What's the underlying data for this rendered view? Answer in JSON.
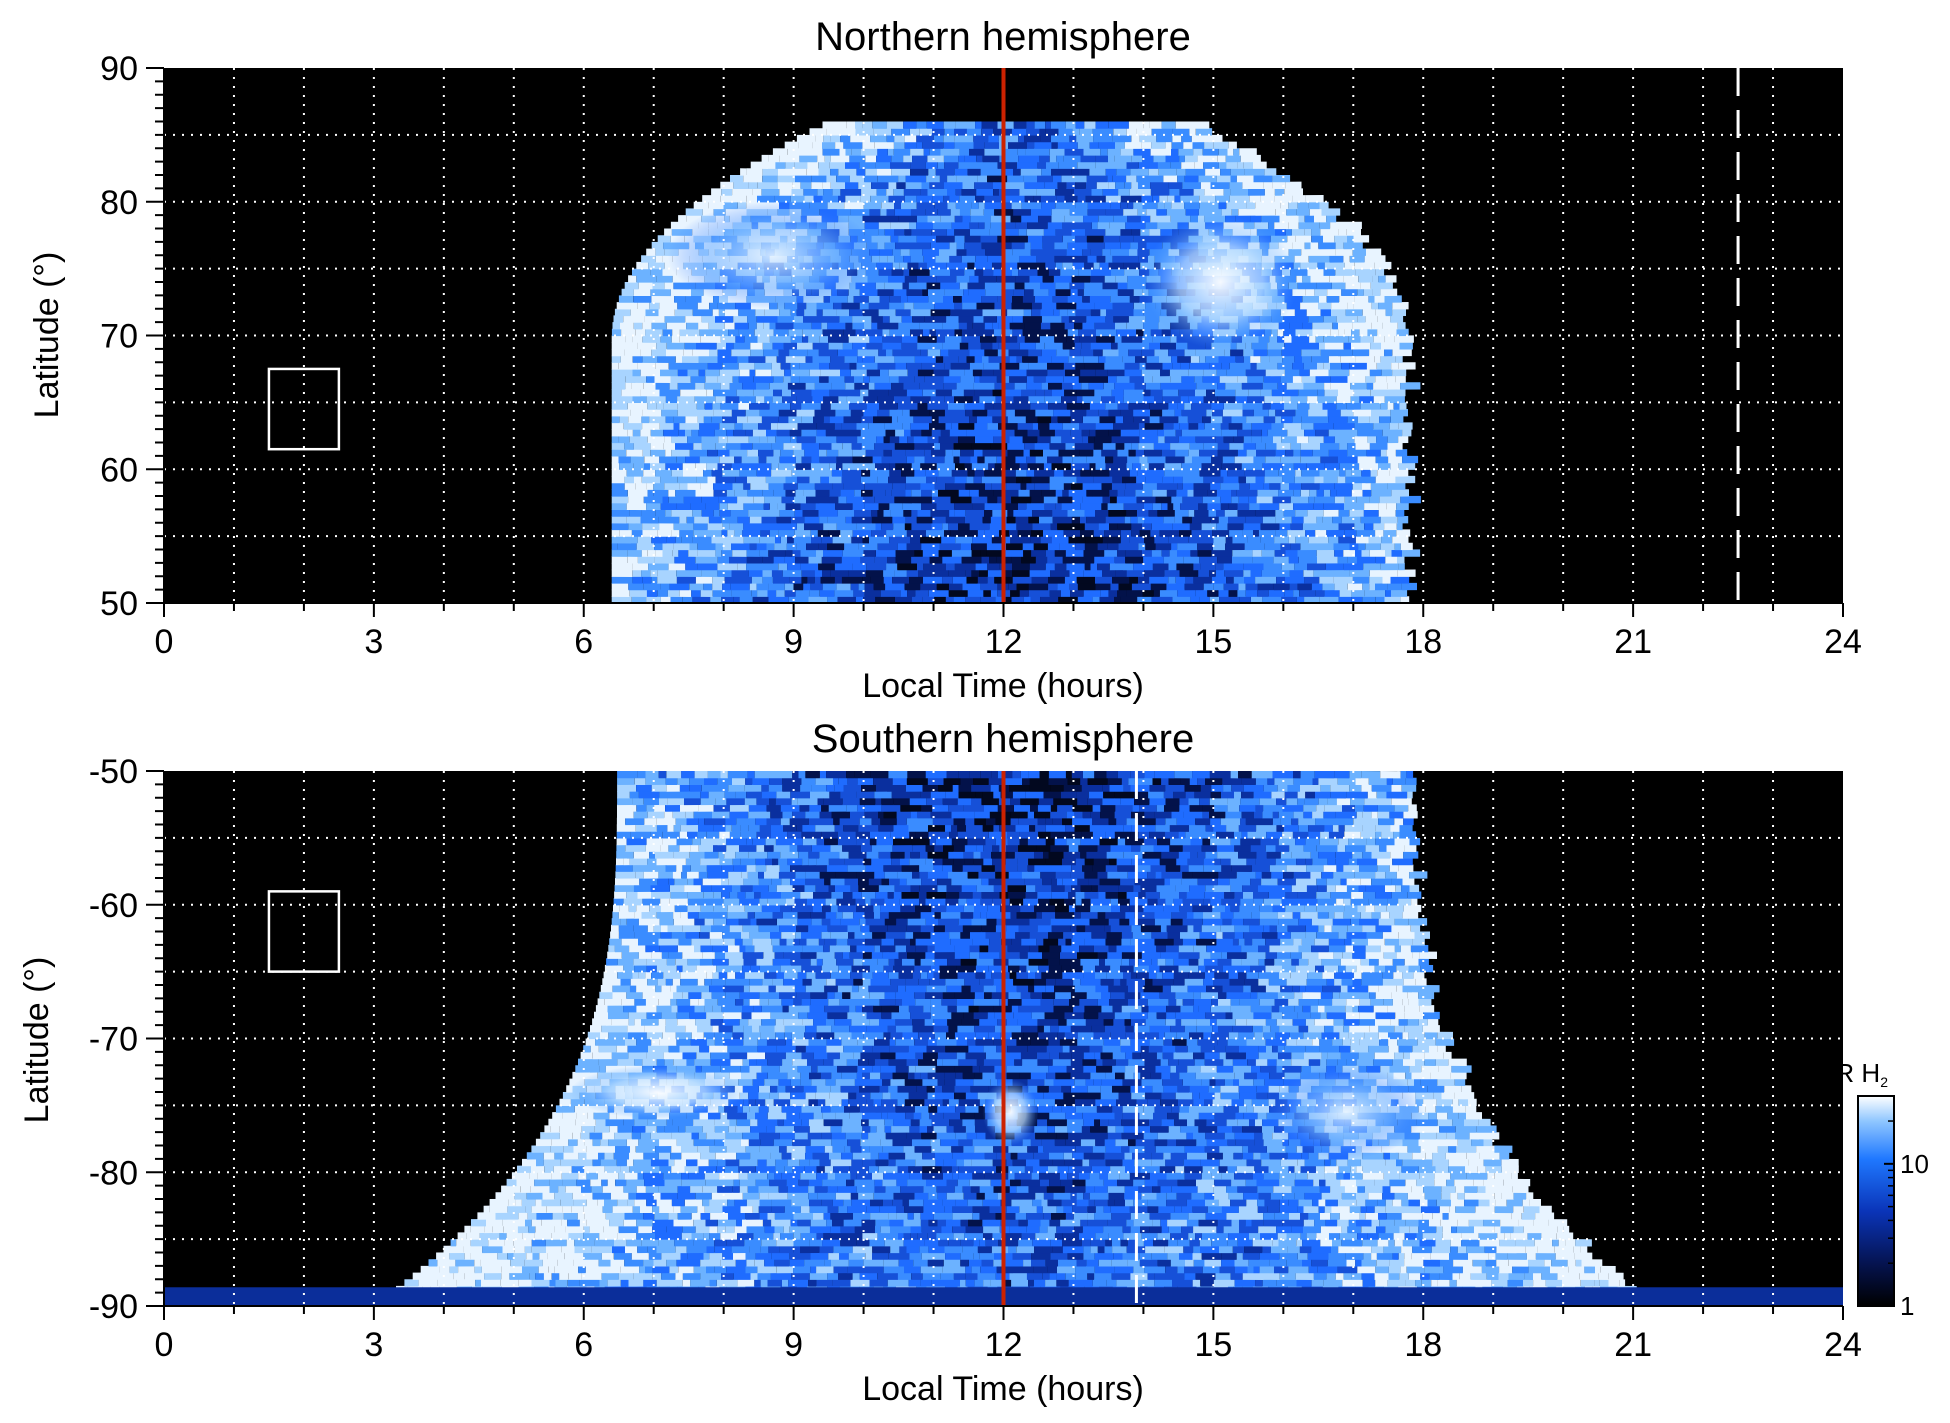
{
  "colors": {
    "background": "#000000",
    "emission_dim": "#0a2a8c",
    "emission_mid": "#1e6cff",
    "emission_bright": "#e8f4ff",
    "grid": "#ffffff",
    "noon_line": "#cc2200"
  },
  "chart_data": [
    {
      "type": "heatmap",
      "title": "Northern hemisphere",
      "xlabel": "Local Time (hours)",
      "ylabel": "Latitude (°)",
      "xlim": [
        0,
        24
      ],
      "ylim": [
        50,
        90
      ],
      "xticks": [
        0,
        3,
        6,
        9,
        12,
        15,
        18,
        21,
        24
      ],
      "yticks": [
        50,
        60,
        70,
        80,
        90
      ],
      "grid": true,
      "grid_x_step": 1,
      "grid_y_step": 5,
      "noon_line_lt": 12,
      "dashed_marker_lt": 22.5,
      "reference_box": {
        "lt": [
          1.5,
          2.5
        ],
        "lat": [
          61.5,
          67.5
        ]
      },
      "emission_region": {
        "lt_extent": [
          6.4,
          17.7
        ],
        "lat_extent": [
          50,
          86
        ],
        "bright_arcs": [
          {
            "lt": [
              14.0,
              16.2
            ],
            "lat": [
              69,
              79
            ],
            "level": "bright"
          },
          {
            "lt": [
              7.2,
              10.2
            ],
            "lat": [
              72,
              80
            ],
            "level": "moderate"
          }
        ]
      }
    },
    {
      "type": "heatmap",
      "title": "Southern hemisphere",
      "xlabel": "Local Time (hours)",
      "ylabel": "Latitude (°)",
      "xlim": [
        0,
        24
      ],
      "ylim": [
        -90,
        -50
      ],
      "xticks": [
        0,
        3,
        6,
        9,
        12,
        15,
        18,
        21,
        24
      ],
      "yticks": [
        -90,
        -80,
        -70,
        -60,
        -50
      ],
      "grid": true,
      "grid_x_step": 1,
      "grid_y_step": 5,
      "noon_line_lt": 12,
      "dashed_marker_lt": 13.9,
      "reference_box": {
        "lt": [
          1.5,
          2.5
        ],
        "lat": [
          -65,
          -59
        ]
      },
      "emission_region": {
        "lt_extent": [
          3.0,
          21.3
        ],
        "lat_extent": [
          -90,
          -50
        ],
        "bright_arcs": [
          {
            "lt": [
              5.8,
              8.3
            ],
            "lat": [
              -76,
              -72
            ],
            "level": "bright"
          },
          {
            "lt": [
              11.7,
              12.5
            ],
            "lat": [
              -78,
              -73
            ],
            "level": "bright"
          },
          {
            "lt": [
              15.8,
              18.0
            ],
            "lat": [
              -79,
              -72
            ],
            "level": "moderate"
          }
        ]
      }
    }
  ],
  "colorbar": {
    "label_kr": "kR",
    "label_species": "H",
    "label_subscript": "2",
    "scale": "log",
    "range": [
      1,
      30
    ],
    "ticks": [
      {
        "value": 1,
        "label": "1"
      },
      {
        "value": 10,
        "label": "10"
      }
    ]
  }
}
